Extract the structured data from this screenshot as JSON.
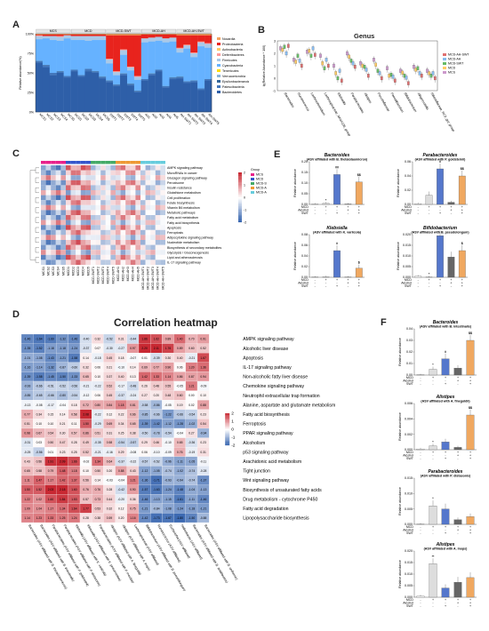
{
  "panels": {
    "A": {
      "label": "A",
      "groups": [
        "MCS",
        "MCD",
        "MCD-SWT",
        "MCD-AH",
        "MCD-AH-SWT"
      ],
      "ylabel": "Relative abundance(%)",
      "legend": [
        "Nocardia",
        "Proteobacteria",
        "Actinobacteria",
        "Deferribacteres",
        "Firmicutes",
        "Cyanobacteria",
        "Tenericutes",
        "Verrucomicrobia",
        "Epsilonbacteraeota",
        "Patescibacteria",
        "Bacteroidetes"
      ],
      "colors": [
        "#f4a460",
        "#e8231d",
        "#ffcc66",
        "#ff9999",
        "#aac9e8",
        "#66b2ff",
        "#ffdd00",
        "#8ab4d8",
        "#336699",
        "#4477bb",
        "#2e5fa8"
      ]
    },
    "B": {
      "label": "B",
      "title": "Genus",
      "ylabel": "lg(Relative Abundance * 100)",
      "genera": [
        "Bacteroides",
        "Ruminococcus",
        "Lachnoclostridium",
        "Lachnospiraceae_NK4A136_group",
        "Klebsiella",
        "Parabacteroides",
        "Alistipes",
        "Prevotellaceae",
        "Faecalibaculum",
        "Bifidobacterium",
        "Alloprevotella",
        "Rikenellaceae_RC9_gut_group"
      ],
      "legend": [
        "MCD-AH-SWT",
        "MCD-AH",
        "MCD-SWT",
        "MCD",
        "MCS"
      ]
    },
    "C": {
      "label": "C",
      "group_title": "Group",
      "scale_ticks": [
        "2",
        "1",
        "0",
        "-1",
        "-2"
      ],
      "legend": [
        "MCS",
        "MCD",
        "MCD-SWT",
        "MCD-AH",
        "MCD-AH-SWT"
      ],
      "pathways": [
        "AMPK signaling pathway",
        "MicroRNAs in cancer",
        "Glucagon signaling pathway",
        "Peroxisome",
        "Insulin resistance",
        "Glutathione metabolism",
        "Cell proliferation",
        "Folate biosynthesis",
        "Vitamin B6 metabolism",
        "Metabolic pathways",
        "Fatty acid metabolism",
        "Fatty acid biosynthesis",
        "Apoptosis",
        "Ferroptosis",
        "Adipocytokine signaling pathway",
        "Nucleotide metabolism",
        "Biosynthesis of secondary metabolites",
        "Glycolysis / Gluconeogenesis",
        "Lipid and atherosclerosis",
        "IL-17 signaling pathway"
      ],
      "samples": [
        "MCS1",
        "MCS2",
        "MCS3",
        "MCS4",
        "MCS5",
        "MCD1",
        "MCD2",
        "MCD3",
        "MCD4",
        "MCD5",
        "MCD-SWT1",
        "MCD-SWT2",
        "MCD-SWT3",
        "MCD-SWT4",
        "MCD-SWT5",
        "MCD-AH1",
        "MCD-AH2",
        "MCD-AH3",
        "MCD-AH4",
        "MCD-AH5",
        "MCD-AH-SWT1",
        "MCD-AH-SWT2",
        "MCD-AH-SWT3",
        "MCD-AH-SWT4",
        "MCD-AH-SWT5"
      ]
    },
    "D": {
      "label": "D",
      "title": "Correlation heatmap",
      "scale_ticks": [
        "2",
        "1",
        "0",
        "-1",
        "-2"
      ],
      "rows": [
        "AMPK signaling pathway",
        "Alcoholic liver disease",
        "Apoptosis",
        "IL-17 signaling pathway",
        "Non-alcoholic fatty liver disease",
        "Chemokine signaling pathway",
        "Neutrophil extracellular trap formation",
        "Alanine, aspartate and glutamate metabolism",
        "Fatty acid biosynthesis",
        "Ferroptosis",
        "PPAR signaling pathway",
        "Alcoholism",
        "p53 signaling pathway",
        "Arachidonic acid metabolism",
        "Tight junction",
        "Wnt signaling pathway",
        "Biosynthesis of unsaturated fatty acids",
        "Drug metabolism - cytochrome P450",
        "Fatty acid degradation",
        "Lipopolysaccharide biosynthesis"
      ],
      "cols": [
        "Bacteroides (ASV affiliated with B. thetaiotaomicron)",
        "Bacteroides (ASV affiliated with B. intestinalis)",
        "Parabacteroides (ASV affiliated with P. goldsteinii)",
        "Parabacteroides (ASV affiliated with P. distasonis)",
        "Klebsiella (ASV affiliated with K. variicola)",
        "Klebsiella (ASV affiliated with K. pneumoniae)",
        "Parabacteroides (ASV affiliated with P. merdae)",
        "Alistipes (ASV affiliated with A. finegoldii)",
        "Alistipes (ASV affiliated with A. inops)",
        "Lachnospiraceae (ASV affiliated)",
        "Bifidobacterium (ASV affiliated with B. pseudolongum)",
        "Ruminococcus (ASV affiliated)",
        "Escherichia (ASV affiliated)",
        "Helicobacter (ASV affiliated)",
        "Bacteroides (ASV affiliated with B. acidifaciens)",
        "Bacteroides (ASV affiliated with B. uniformis)"
      ],
      "values": [
        [
          -1.46,
          -1.64,
          -1.6,
          -1.32,
          -1.46,
          -0.4,
          0.32,
          -0.52,
          0.31,
          -0.44,
          1.86,
          1.62,
          0.89,
          1.4,
          0.7,
          0.91
        ],
        [
          -1.35,
          -1.52,
          -1.18,
          -1.18,
          -1.24,
          -0.37,
          0.07,
          -0.3,
          -0.27,
          0.97,
          2.2,
          2.11,
          1.76,
          0.89,
          0.6,
          0.52
        ],
        [
          -1.01,
          -1.08,
          -1.43,
          -1.21,
          -1.58,
          0.14,
          -0.18,
          0.45,
          0.18,
          -0.07,
          0.01,
          -0.39,
          0.3,
          0.4,
          -0.21,
          1.67
        ],
        [
          -1.16,
          -1.14,
          -1.32,
          -0.87,
          -0.6,
          0.32,
          0.06,
          0.21,
          -0.1,
          0.14,
          0.69,
          0.77,
          0.9,
          0.06,
          1.2,
          1.36
        ],
        [
          -1.39,
          -1.58,
          -1.45,
          -1.5,
          -1.33,
          0.65,
          0.1,
          0.37,
          0.4,
          0.13,
          1.42,
          1.33,
          1.14,
          0.86,
          0.87,
          0.94
        ],
        [
          -0.93,
          -0.66,
          -0.51,
          -0.52,
          -0.56,
          -0.21,
          -0.22,
          0.52,
          -0.17,
          -0.48,
          0.26,
          0.48,
          0.55,
          -0.05,
          1.21,
          -0.09
        ],
        [
          -0.85,
          -0.65,
          -0.66,
          -0.8,
          -0.54,
          -0.12,
          0.06,
          0.45,
          -0.37,
          -0.24,
          0.27,
          0.2,
          0.48,
          0.6,
          0.0,
          0.1
        ],
        [
          -0.13,
          -0.08,
          -0.17,
          -0.04,
          0.18,
          0.72,
          0.8,
          0.84,
          1.18,
          0.81,
          -0.58,
          -0.86,
          -0.05,
          0.19,
          0.02,
          0.88
        ],
        [
          0.77,
          0.34,
          0.15,
          0.14,
          0.58,
          2.08,
          -0.22,
          0.12,
          0.22,
          0.66,
          -0.85,
          -0.66,
          -1.22,
          -0.66,
          -0.54,
          0.23
        ],
        [
          0.51,
          0.1,
          0.1,
          0.21,
          0.11,
          1.5,
          -0.29,
          0.69,
          0.34,
          0.65,
          -1.39,
          -1.42,
          -1.12,
          -1.28,
          -1.02,
          0.54
        ],
        [
          0.98,
          0.67,
          0.54,
          0.3,
          0.57,
          0.86,
          0.51,
          0.31,
          0.25,
          0.38,
          -0.5,
          -0.78,
          -0.54,
          -0.04,
          0.27,
          -0.94
        ],
        [
          -0.31,
          0.03,
          0.5,
          0.47,
          0.28,
          0.49,
          -0.35,
          0.58,
          -0.54,
          -0.57,
          0.29,
          0.46,
          -0.1,
          0.65,
          -0.36,
          0.23
        ],
        [
          -0.25,
          -0.56,
          0.01,
          0.23,
          0.25,
          0.52,
          -0.21,
          -0.16,
          0.29,
          -0.08,
          0.06,
          -0.1,
          -0.09,
          0.76,
          -0.19,
          0.31
        ],
        [
          0.43,
          0.56,
          1.91,
          2.09,
          1.66,
          -0.02,
          1.34,
          0.64,
          -0.37,
          -0.22,
          -0.57,
          -0.52,
          -0.96,
          -1.11,
          -1.05,
          -0.11
        ],
        [
          0.65,
          0.58,
          0.79,
          1.48,
          1.18,
          0.1,
          0.5,
          0.2,
          0.88,
          0.43,
          -1.12,
          -1.05,
          -0.74,
          -1.02,
          -0.74,
          -0.28
        ],
        [
          1.11,
          1.47,
          1.17,
          1.42,
          1.37,
          0.56,
          0.14,
          -0.03,
          -0.04,
          1.21,
          -1.36,
          -1.71,
          -0.93,
          -0.94,
          -0.74,
          -1.37
        ],
        [
          1.5,
          1.52,
          2.03,
          2.18,
          1.6,
          0.76,
          0.76,
          0.28,
          -0.42,
          0.9,
          -1.57,
          -1.63,
          -1.24,
          -1.48,
          -1.04,
          -1.13
        ],
        [
          1.22,
          1.02,
          1.6,
          1.84,
          1.53,
          0.57,
          0.73,
          0.44,
          -0.2,
          0.36,
          -1.46,
          -1.13,
          -1.15,
          -1.61,
          -1.11,
          -1.46
        ],
        [
          1.09,
          1.04,
          1.17,
          1.34,
          1.64,
          1.77,
          0.53,
          0.32,
          0.12,
          0.75,
          -1.21,
          -0.84,
          -1.08,
          -1.24,
          -1.18,
          -1.21
        ],
        [
          1.14,
          1.23,
          1.33,
          1.25,
          1.24,
          0.28,
          0.38,
          0.59,
          0.2,
          1.16,
          -1.42,
          -1.73,
          -1.67,
          -1.8,
          -1.5,
          -0.88
        ]
      ]
    },
    "E": {
      "label": "E",
      "ylabel": "Relative abundance",
      "row_labels": [
        "MCD",
        "Alcohol",
        "SWT"
      ],
      "signs": [
        [
          "-",
          "+",
          "+",
          "+",
          "+"
        ],
        [
          "-",
          "-",
          "-",
          "+",
          "+"
        ],
        [
          "-",
          "-",
          "+",
          "-",
          "+"
        ]
      ],
      "charts": [
        {
          "title": "Bacteroides (ASV affiliated with B. thetaiotaomicron)",
          "values": [
            0.002,
            0.005,
            0.14,
            0.002,
            0.105
          ],
          "yticks": [
            "0.00",
            "0.05",
            "0.10",
            "0.15",
            "0.20"
          ],
          "sig": [
            "",
            "*",
            "##",
            "",
            "$$"
          ]
        },
        {
          "title": "Parabacteroides (ASV affiliated with P. goldsteinii)",
          "values": [
            0.001,
            0.013,
            0.05,
            0.003,
            0.04
          ],
          "yticks": [
            "0.00",
            "0.02",
            "0.04",
            "0.06"
          ],
          "sig": [
            "",
            "",
            "#",
            "",
            "$$"
          ]
        },
        {
          "title": "Klebsiella (ASV affiliated with K. variicola)",
          "values": [
            0.0,
            0.001,
            0.05,
            0.0,
            0.017
          ],
          "yticks": [
            "0.00",
            "0.02",
            "0.04",
            "0.06",
            "0.08"
          ],
          "sig": [
            "",
            "",
            "#",
            "",
            "$"
          ]
        },
        {
          "title": "Bifidobacterium (ASV affiliated with B. pseudolongum)",
          "values": [
            0.0005,
            0.0001,
            0.0195,
            0.0095,
            0.0125
          ],
          "yticks": [
            "0.000",
            "0.005",
            "0.010",
            "0.015",
            "0.020"
          ],
          "sig": [
            "",
            "*",
            "#",
            "",
            "$"
          ]
        }
      ]
    },
    "F": {
      "label": "F",
      "ylabel": "Relative abundance",
      "row_labels": [
        "MCD",
        "Alcohol",
        "SWT"
      ],
      "signs": [
        [
          "-",
          "+",
          "+",
          "+",
          "+"
        ],
        [
          "-",
          "-",
          "-",
          "+",
          "+"
        ],
        [
          "-",
          "-",
          "+",
          "-",
          "+"
        ]
      ],
      "charts": [
        {
          "title": "Bacteroides (ASV affiliated with B. intestinalis)",
          "values": [
            0.0001,
            0.005,
            0.014,
            0.006,
            0.03
          ],
          "yticks": [
            "0.00",
            "0.01",
            "0.02",
            "0.03",
            "0.04"
          ],
          "sig": [
            "",
            "*",
            "#",
            "",
            "$$"
          ]
        },
        {
          "title": "Alistipes (ASV affiliated with A. finegoldii)",
          "values": [
            0.0001,
            0.0005,
            0.001,
            0.0003,
            0.0045
          ],
          "yticks": [
            "0.000",
            "0.002",
            "0.004",
            "0.006"
          ],
          "sig": [
            "",
            "*",
            "",
            "",
            "$$"
          ]
        },
        {
          "title": "Parabacteroides (ASV affiliated with P. distasonis)",
          "values": [
            0.0001,
            0.006,
            0.005,
            0.0015,
            0.0025
          ],
          "yticks": [
            "0.000",
            "0.005",
            "0.010",
            "0.015"
          ],
          "sig": [
            "",
            "*",
            "",
            "",
            ""
          ]
        },
        {
          "title": "Alistipes (ASV affiliated with A. inops)",
          "values": [
            0.0005,
            0.0145,
            0.004,
            0.0065,
            0.0085
          ],
          "yticks": [
            "0.000",
            "0.005",
            "0.010",
            "0.015",
            "0.020"
          ],
          "sig": [
            "",
            "**",
            "",
            "",
            ""
          ]
        }
      ]
    }
  }
}
